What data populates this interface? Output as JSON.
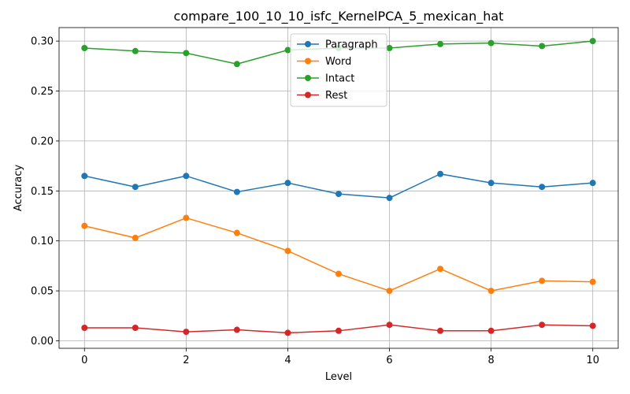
{
  "chart_data": {
    "type": "line",
    "title": "compare_100_10_10_isfc_KernelPCA_5_mexican_hat",
    "xlabel": "Level",
    "ylabel": "Accuracy",
    "xlim": [
      -0.5,
      10.5
    ],
    "ylim": [
      -0.0075,
      0.3135
    ],
    "xticks": [
      0,
      2,
      4,
      6,
      8,
      10
    ],
    "yticks": [
      0.0,
      0.05,
      0.1,
      0.15,
      0.2,
      0.25,
      0.3
    ],
    "xtick_labels": [
      "0",
      "2",
      "4",
      "6",
      "8",
      "10"
    ],
    "ytick_labels": [
      "0.00",
      "0.05",
      "0.10",
      "0.15",
      "0.20",
      "0.25",
      "0.30"
    ],
    "grid": true,
    "legend_position": "top-center",
    "x": [
      0,
      1,
      2,
      3,
      4,
      5,
      6,
      7,
      8,
      9,
      10
    ],
    "series": [
      {
        "name": "Paragraph",
        "color": "#1f77b4",
        "values": [
          0.165,
          0.154,
          0.165,
          0.149,
          0.158,
          0.147,
          0.143,
          0.167,
          0.158,
          0.154,
          0.158
        ]
      },
      {
        "name": "Word",
        "color": "#ff7f0e",
        "values": [
          0.115,
          0.103,
          0.123,
          0.108,
          0.09,
          0.067,
          0.05,
          0.072,
          0.05,
          0.06,
          0.059
        ]
      },
      {
        "name": "Intact",
        "color": "#2ca02c",
        "values": [
          0.293,
          0.29,
          0.288,
          0.277,
          0.291,
          0.293,
          0.293,
          0.297,
          0.298,
          0.295,
          0.3
        ]
      },
      {
        "name": "Rest",
        "color": "#d62728",
        "values": [
          0.013,
          0.013,
          0.009,
          0.011,
          0.008,
          0.01,
          0.016,
          0.01,
          0.01,
          0.016,
          0.015
        ]
      }
    ]
  }
}
